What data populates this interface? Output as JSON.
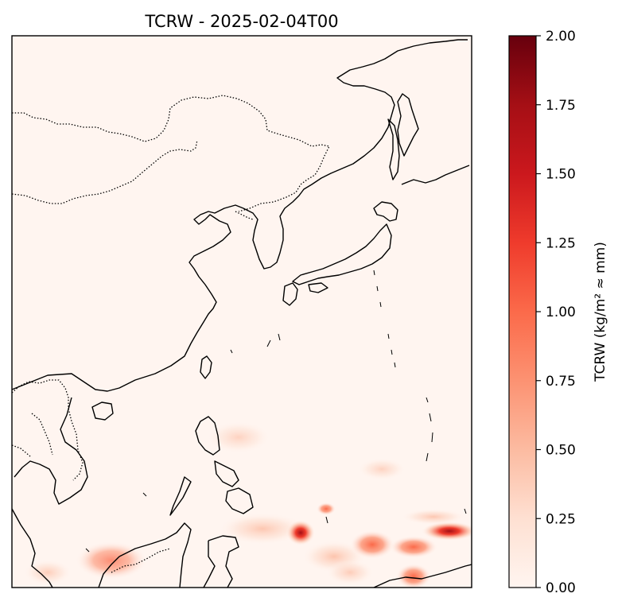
{
  "chart_data": {
    "type": "heatmap",
    "title": "TCRW - 2025-02-04T00",
    "xlabel": "",
    "ylabel": "",
    "colorbar": {
      "label": "TCRW (kg/m² ≈ mm)",
      "colormap": "Reds",
      "vmin": 0.0,
      "vmax": 2.0,
      "ticks": [
        0.0,
        0.25,
        0.5,
        0.75,
        1.0,
        1.25,
        1.5,
        1.75,
        2.0
      ],
      "tick_labels": [
        "0.00",
        "0.25",
        "0.50",
        "0.75",
        "1.00",
        "1.25",
        "1.50",
        "1.75",
        "2.00"
      ],
      "colors": [
        "#fff5f0",
        "#fee0d2",
        "#fcbba1",
        "#fc9272",
        "#fb6a4a",
        "#ef3b2c",
        "#cb181d",
        "#a50f15",
        "#67000d"
      ]
    },
    "map": {
      "background_value": 0.0,
      "features": [
        "coastlines",
        "country borders"
      ],
      "precipitation_areas": [
        {
          "region": "south of Luzon, near Mindanao",
          "approx_value": 1.7
        },
        {
          "region": "east of Mindanao",
          "approx_value": 0.7
        },
        {
          "region": "far southeast",
          "approx_value": 1.8
        },
        {
          "region": "southeast, near equator",
          "approx_value": 1.0
        },
        {
          "region": "Borneo north coast",
          "approx_value": 0.4
        }
      ]
    }
  }
}
